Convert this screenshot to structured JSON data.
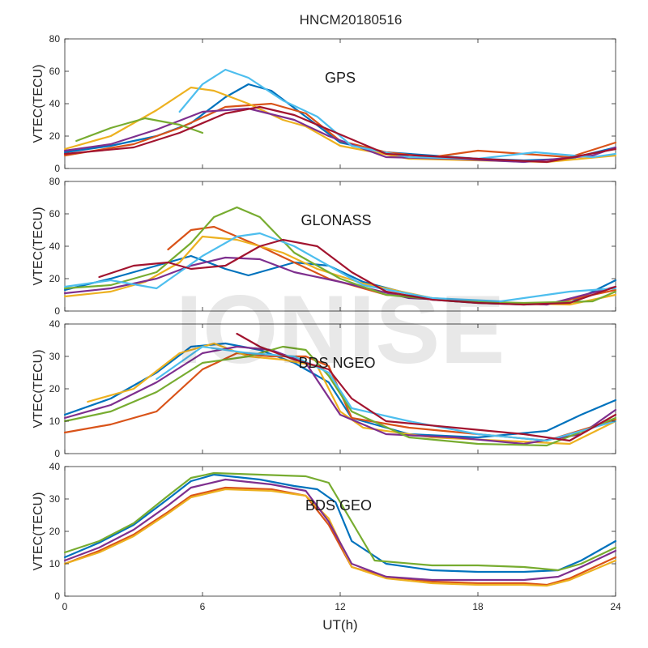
{
  "title": "HNCM20180516",
  "watermark": "IONISE",
  "xlabel": "UT(h)",
  "palette": [
    "#0072BD",
    "#D95319",
    "#EDB120",
    "#7E2F8E",
    "#77AC30",
    "#4DBEEE",
    "#A2142F"
  ],
  "chart_data": [
    {
      "type": "line",
      "panel_label": "GPS",
      "ylabel": "VTEC(TECU)",
      "xlim": [
        0,
        24
      ],
      "ylim": [
        0,
        80
      ],
      "xticks": [
        0,
        6,
        12,
        18,
        24
      ],
      "yticks": [
        0,
        20,
        40,
        60,
        80
      ],
      "show_xticklabels": false,
      "series": [
        {
          "x": [
            0,
            2,
            4,
            5.5,
            7,
            8,
            9,
            10.5,
            12,
            14,
            16,
            18,
            20,
            22,
            24
          ],
          "y": [
            10,
            14,
            20,
            28,
            44,
            52,
            48,
            32,
            16,
            10,
            8,
            6,
            5,
            6,
            13
          ]
        },
        {
          "x": [
            0,
            3,
            5,
            7,
            9,
            10.5,
            12,
            14,
            16,
            18,
            20,
            22,
            24
          ],
          "y": [
            8,
            15,
            25,
            38,
            40,
            34,
            17,
            10,
            7,
            11,
            9,
            7,
            16
          ]
        },
        {
          "x": [
            0,
            2,
            4,
            5.5,
            6.5,
            8,
            9.5,
            10.5,
            12,
            15,
            18,
            21,
            24
          ],
          "y": [
            12,
            20,
            36,
            50,
            48,
            40,
            30,
            26,
            14,
            6,
            5,
            4,
            8
          ]
        },
        {
          "x": [
            0,
            2,
            4,
            6,
            8,
            10,
            11.5,
            14,
            17,
            20,
            23,
            24
          ],
          "y": [
            11,
            15,
            24,
            35,
            37,
            30,
            20,
            7,
            6,
            4,
            8,
            13
          ]
        },
        {
          "x": [
            0.5,
            2,
            3.5,
            5,
            6
          ],
          "y": [
            17,
            25,
            31,
            27,
            22
          ]
        },
        {
          "x": [
            5,
            6,
            7,
            8,
            9.5,
            11,
            12.5,
            15,
            18,
            20.5,
            23,
            24
          ],
          "y": [
            35,
            52,
            61,
            56,
            42,
            32,
            14,
            7,
            6,
            10,
            7,
            9
          ]
        },
        {
          "x": [
            0,
            3,
            5,
            7,
            8.5,
            10,
            11.5,
            14,
            18,
            21,
            24
          ],
          "y": [
            9,
            13,
            22,
            34,
            38,
            33,
            24,
            9,
            6,
            4,
            12
          ]
        }
      ]
    },
    {
      "type": "line",
      "panel_label": "GLONASS",
      "ylabel": "VTEC(TECU)",
      "xlim": [
        0,
        24
      ],
      "ylim": [
        0,
        80
      ],
      "xticks": [
        0,
        6,
        12,
        18,
        24
      ],
      "yticks": [
        0,
        20,
        40,
        60,
        80
      ],
      "show_xticklabels": false,
      "series": [
        {
          "x": [
            0,
            2,
            4,
            5.5,
            7,
            8,
            10,
            11.5,
            13,
            16,
            18,
            20,
            22,
            24
          ],
          "y": [
            13,
            20,
            28,
            34,
            26,
            22,
            30,
            28,
            18,
            7,
            5,
            4,
            5,
            19
          ]
        },
        {
          "x": [
            4.5,
            5.5,
            6.5,
            7.5,
            8.5,
            10,
            11.5,
            14,
            17,
            19,
            21,
            24
          ],
          "y": [
            38,
            50,
            52,
            46,
            40,
            30,
            20,
            10,
            7,
            5,
            4,
            13
          ]
        },
        {
          "x": [
            0,
            2,
            3.5,
            5,
            6,
            7.5,
            9.5,
            11,
            13,
            16,
            19,
            22,
            24
          ],
          "y": [
            9,
            12,
            18,
            30,
            46,
            44,
            36,
            26,
            17,
            8,
            5,
            4,
            10
          ]
        },
        {
          "x": [
            0,
            2,
            4,
            5.5,
            7,
            8.5,
            10,
            12,
            15,
            18,
            21,
            24
          ],
          "y": [
            11,
            14,
            20,
            28,
            33,
            32,
            24,
            18,
            8,
            6,
            4,
            15
          ]
        },
        {
          "x": [
            0,
            2,
            4,
            5.5,
            6.5,
            7.5,
            8.5,
            10,
            12,
            14,
            17,
            20,
            23,
            24
          ],
          "y": [
            14,
            16,
            24,
            42,
            58,
            64,
            58,
            36,
            20,
            10,
            6,
            5,
            6,
            12
          ]
        },
        {
          "x": [
            0,
            2,
            4,
            6,
            7.5,
            8.5,
            10,
            11.5,
            13,
            16,
            19,
            22,
            24
          ],
          "y": [
            15,
            19,
            14,
            34,
            46,
            48,
            40,
            28,
            16,
            8,
            6,
            12,
            14
          ]
        },
        {
          "x": [
            1.5,
            3,
            4.5,
            5.5,
            7,
            8.5,
            9.5,
            11,
            12.5,
            14,
            16,
            18,
            20,
            22,
            24
          ],
          "y": [
            21,
            28,
            30,
            26,
            28,
            40,
            44,
            40,
            24,
            12,
            7,
            5,
            4,
            5,
            15
          ]
        }
      ]
    },
    {
      "type": "line",
      "panel_label": "BDS NGEO",
      "ylabel": "VTEC(TECU)",
      "xlim": [
        0,
        24
      ],
      "ylim": [
        0,
        40
      ],
      "xticks": [
        0,
        6,
        12,
        18,
        24
      ],
      "yticks": [
        0,
        10,
        20,
        30,
        40
      ],
      "show_xticklabels": false,
      "series": [
        {
          "x": [
            0,
            2,
            4,
            5.5,
            7,
            8.5,
            10,
            11.5,
            12.5,
            15,
            18,
            21,
            22.5,
            24
          ],
          "y": [
            12,
            17,
            25,
            33,
            34,
            32,
            28,
            22,
            11,
            6,
            5,
            7,
            12,
            16.5
          ]
        },
        {
          "x": [
            0,
            2,
            4,
            6,
            7.5,
            9,
            10.5,
            11.5,
            12.5,
            15,
            18,
            21,
            24
          ],
          "y": [
            6.5,
            9,
            13,
            26,
            31,
            30,
            30,
            27,
            11,
            8,
            6,
            4,
            10.5
          ]
        },
        {
          "x": [
            1,
            3,
            5,
            6.5,
            8,
            9.5,
            11,
            12,
            13,
            16,
            19,
            22,
            24
          ],
          "y": [
            16,
            20,
            31,
            34,
            30,
            29,
            27,
            13,
            8,
            5,
            4,
            3,
            10
          ]
        },
        {
          "x": [
            0,
            2,
            4,
            6,
            7.5,
            9,
            10.5,
            12,
            14,
            17,
            20,
            22.5,
            24
          ],
          "y": [
            11,
            15,
            22,
            31,
            33,
            32,
            28,
            12,
            6,
            5,
            3,
            6,
            13.5
          ]
        },
        {
          "x": [
            0,
            2,
            4,
            6,
            8,
            9.5,
            10.5,
            11.5,
            12.5,
            15,
            18,
            21,
            24
          ],
          "y": [
            10,
            13,
            19,
            28,
            30,
            33,
            32,
            24,
            13,
            5,
            3,
            2.5,
            11
          ]
        },
        {
          "x": [
            4,
            6,
            8,
            10,
            11.5,
            12.5,
            15,
            18,
            21,
            24
          ],
          "y": [
            23,
            33,
            31,
            30,
            25,
            14,
            10,
            6,
            4,
            10
          ]
        },
        {
          "x": [
            7.5,
            8.5,
            10,
            11.5,
            12.5,
            14,
            17,
            20,
            22,
            24
          ],
          "y": [
            37,
            33,
            29,
            26,
            17,
            10,
            8,
            6,
            4,
            12
          ]
        }
      ]
    },
    {
      "type": "line",
      "panel_label": "BDS GEO",
      "ylabel": "VTEC(TECU)",
      "xlim": [
        0,
        24
      ],
      "ylim": [
        0,
        40
      ],
      "xticks": [
        0,
        6,
        12,
        18,
        24
      ],
      "yticks": [
        0,
        10,
        20,
        30,
        40
      ],
      "xticklabels": [
        "0",
        "6",
        "12",
        "18",
        "24"
      ],
      "show_xticklabels": true,
      "series": [
        {
          "x": [
            0,
            1.5,
            3,
            4.5,
            5.5,
            6.5,
            8.5,
            10,
            11,
            11.8,
            12.5,
            14,
            16,
            18,
            20,
            21.5,
            22.5,
            24
          ],
          "y": [
            12,
            16.5,
            22,
            30,
            35.5,
            37.5,
            36,
            34,
            33,
            29,
            17,
            10,
            8,
            7.5,
            7.5,
            8,
            11,
            17
          ]
        },
        {
          "x": [
            0,
            1.5,
            3,
            4.5,
            5.5,
            7,
            9,
            10.5,
            11.5,
            12.5,
            14,
            16,
            18,
            20,
            21,
            22,
            24
          ],
          "y": [
            10,
            14,
            19,
            26,
            31,
            33.5,
            33,
            31,
            22,
            9,
            6,
            4.5,
            4,
            4,
            3.5,
            5.5,
            12
          ]
        },
        {
          "x": [
            0,
            1.5,
            3,
            4.5,
            5.5,
            7,
            9,
            10.5,
            11.5,
            12.5,
            14,
            16,
            18,
            20,
            21,
            22,
            24
          ],
          "y": [
            10,
            13.5,
            18.5,
            25.5,
            30.5,
            33,
            32.5,
            31,
            24,
            9,
            5.5,
            4,
            3.5,
            3.5,
            3.2,
            5,
            11
          ]
        },
        {
          "x": [
            0,
            1.5,
            3,
            4.5,
            5.5,
            7,
            9,
            10.5,
            11.5,
            12.5,
            14,
            16,
            18,
            20,
            21.5,
            22.5,
            24
          ],
          "y": [
            11,
            15,
            20.5,
            28,
            33.5,
            36,
            34.5,
            32.5,
            23,
            10,
            6,
            5,
            5,
            5,
            6,
            9,
            14
          ]
        },
        {
          "x": [
            0,
            1.5,
            3,
            4.5,
            5.5,
            6.5,
            8.5,
            10.5,
            11.5,
            12.5,
            13.5,
            16,
            18,
            20,
            21.5,
            22.5,
            24
          ],
          "y": [
            13.5,
            17,
            22.5,
            31,
            36.5,
            38,
            37.5,
            37,
            35,
            23,
            11,
            9.5,
            9.5,
            9,
            8,
            10,
            15
          ]
        }
      ]
    }
  ]
}
